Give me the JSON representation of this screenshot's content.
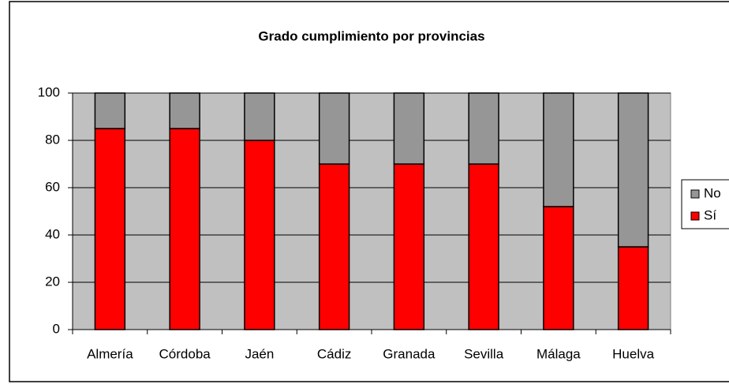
{
  "chart_data": {
    "type": "stacked_bar",
    "title": "Grado cumplimiento por provincias",
    "categories": [
      "Almería",
      "Córdoba",
      "Jaén",
      "Cádiz",
      "Granada",
      "Sevilla",
      "Málaga",
      "Huelva"
    ],
    "series": [
      {
        "name": "Sí",
        "color": "#ff0000",
        "values": [
          85,
          85,
          80,
          70,
          70,
          70,
          52,
          35
        ]
      },
      {
        "name": "No",
        "color": "#969696",
        "values": [
          15,
          15,
          20,
          30,
          30,
          30,
          48,
          65
        ]
      }
    ],
    "ylim": [
      0,
      100
    ],
    "yticks": [
      0,
      20,
      40,
      60,
      80,
      100
    ],
    "grid": true,
    "legend": "right"
  }
}
